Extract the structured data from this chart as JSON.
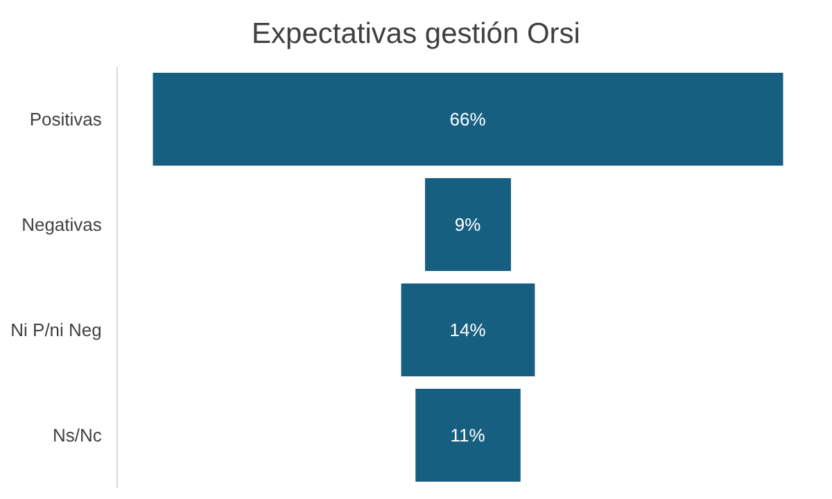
{
  "chart_data": {
    "type": "other",
    "title": "Expectativas gestión Orsi",
    "categories": [
      "Positivas",
      "Negativas",
      "Ni P/ni Neg",
      "Ns/Nc"
    ],
    "values": [
      66,
      9,
      14,
      11
    ],
    "value_labels": [
      "66%",
      "9%",
      "14%",
      "11%"
    ],
    "color": "#175f80"
  }
}
